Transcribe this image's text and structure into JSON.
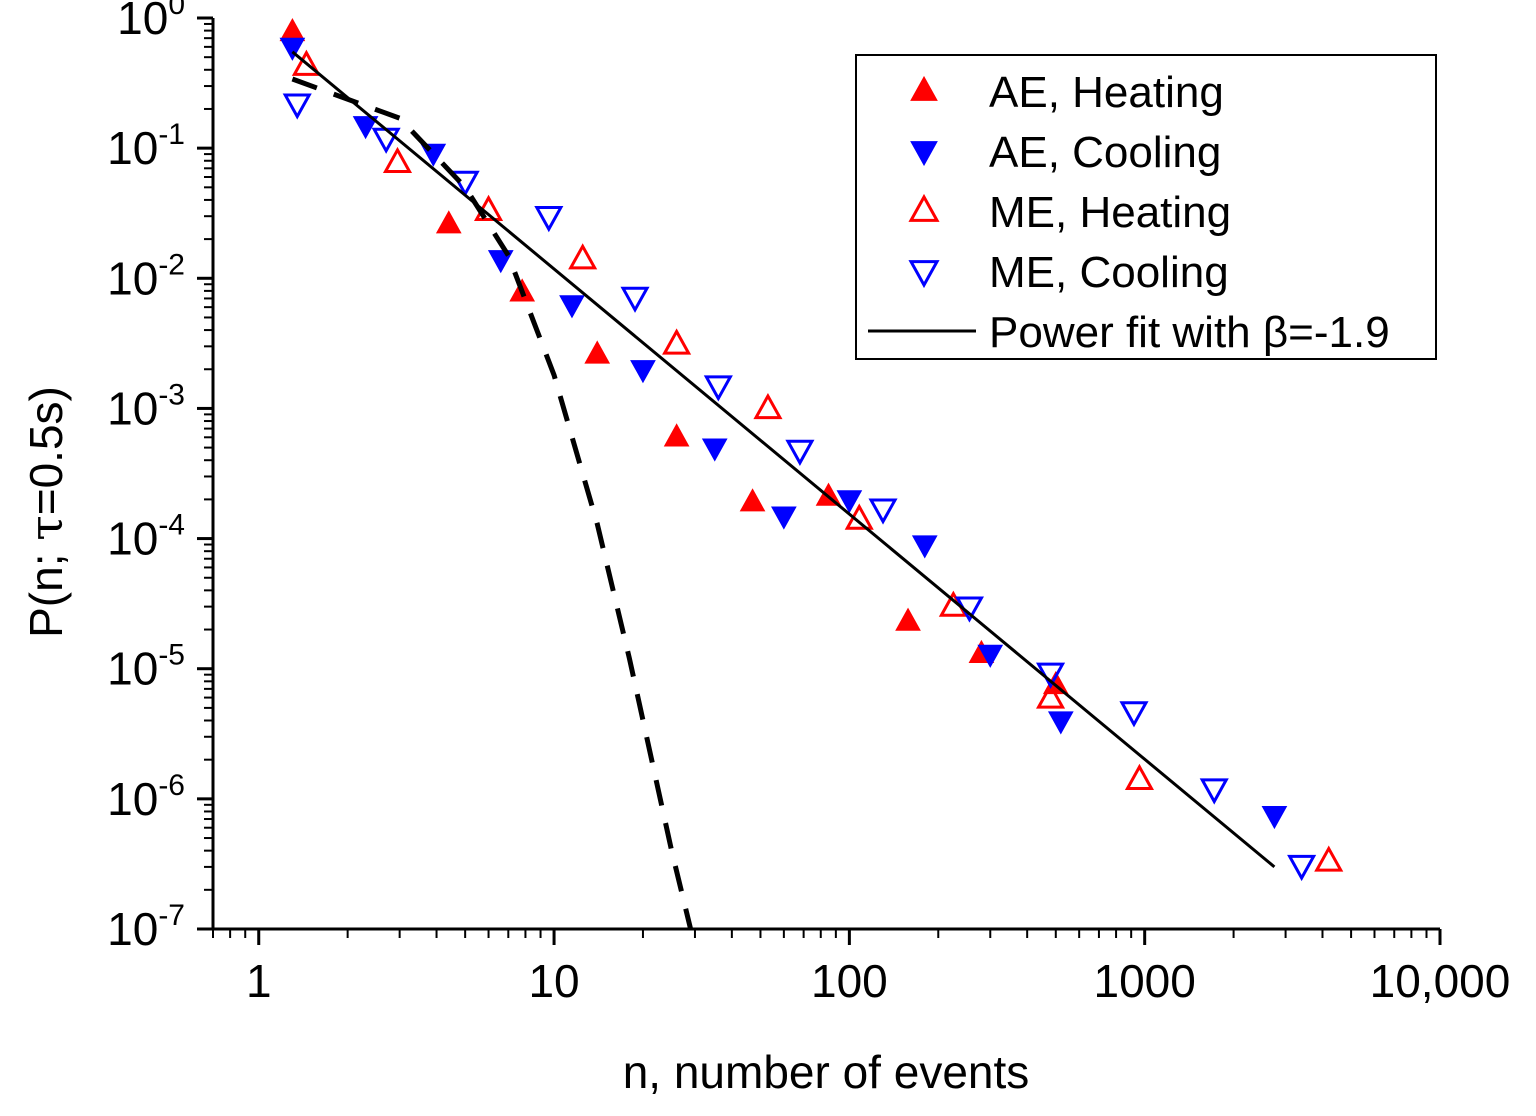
{
  "chart_data": {
    "type": "scatter",
    "title": "",
    "xlabel": "n, number of events",
    "ylabel_parts": [
      "P(n; ",
      "τ",
      "=0.5s)"
    ],
    "xscale": "log",
    "yscale": "log",
    "xlim": [
      0.7,
      10000
    ],
    "ylim": [
      1e-07,
      1
    ],
    "grid": false,
    "legend_position": "top-right",
    "x_ticks": [
      {
        "value": 1,
        "label": "1"
      },
      {
        "value": 10,
        "label": "10"
      },
      {
        "value": 100,
        "label": "100"
      },
      {
        "value": 1000,
        "label": "1000"
      },
      {
        "value": 10000,
        "label": "10,000"
      }
    ],
    "y_ticks": [
      {
        "value": 1,
        "base": "10",
        "exp": "0"
      },
      {
        "value": 0.1,
        "base": "10",
        "exp": "-1"
      },
      {
        "value": 0.01,
        "base": "10",
        "exp": "-2"
      },
      {
        "value": 0.001,
        "base": "10",
        "exp": "-3"
      },
      {
        "value": 0.0001,
        "base": "10",
        "exp": "-4"
      },
      {
        "value": 1e-05,
        "base": "10",
        "exp": "-5"
      },
      {
        "value": 1e-06,
        "base": "10",
        "exp": "-6"
      },
      {
        "value": 1e-07,
        "base": "10",
        "exp": "-7"
      }
    ],
    "series": [
      {
        "name": "AE, Heating",
        "marker": "triangle-up",
        "filled": true,
        "color": "#ff0000",
        "points": [
          [
            1.3,
            0.78
          ],
          [
            4.4,
            0.026
          ],
          [
            7.8,
            0.0078
          ],
          [
            14,
            0.0026
          ],
          [
            26,
            0.0006
          ],
          [
            47,
            0.00019
          ],
          [
            85,
            0.00021
          ],
          [
            158,
            2.3e-05
          ],
          [
            280,
            1.3e-05
          ],
          [
            500,
            7.5e-06
          ]
        ]
      },
      {
        "name": "AE, Cooling",
        "marker": "triangle-down",
        "filled": true,
        "color": "#0000ff",
        "points": [
          [
            1.3,
            0.6
          ],
          [
            2.3,
            0.15
          ],
          [
            3.9,
            0.092
          ],
          [
            6.6,
            0.014
          ],
          [
            11.5,
            0.0063
          ],
          [
            20,
            0.002
          ],
          [
            35,
            0.0005
          ],
          [
            60,
            0.00015
          ],
          [
            100,
            0.0002
          ],
          [
            180,
            9e-05
          ],
          [
            300,
            1.3e-05
          ],
          [
            520,
            4e-06
          ],
          [
            2750,
            7.5e-07
          ]
        ]
      },
      {
        "name": "ME, Heating",
        "marker": "triangle-up",
        "filled": false,
        "color": "#ff0000",
        "points": [
          [
            1.45,
            0.43
          ],
          [
            2.95,
            0.077
          ],
          [
            6,
            0.033
          ],
          [
            12.5,
            0.014
          ],
          [
            26,
            0.0031
          ],
          [
            53,
            0.00099
          ],
          [
            108,
            0.00014
          ],
          [
            225,
            3e-05
          ],
          [
            480,
            5.9e-06
          ],
          [
            960,
            1.4e-06
          ],
          [
            4200,
            3.3e-07
          ]
        ]
      },
      {
        "name": "ME, Cooling",
        "marker": "triangle-down",
        "filled": false,
        "color": "#0000ff",
        "points": [
          [
            1.35,
            0.22
          ],
          [
            2.7,
            0.12
          ],
          [
            5,
            0.056
          ],
          [
            9.6,
            0.03
          ],
          [
            18.8,
            0.0072
          ],
          [
            36,
            0.0015
          ],
          [
            68,
            0.00048
          ],
          [
            130,
            0.00017
          ],
          [
            255,
            3e-05
          ],
          [
            480,
            9.3e-06
          ],
          [
            920,
            4.7e-06
          ],
          [
            1720,
            1.2e-06
          ],
          [
            3400,
            3.1e-07
          ]
        ]
      },
      {
        "name": "Power fit with β=-1.9",
        "type": "line",
        "style": "solid",
        "color": "#000000",
        "points": [
          [
            1.3,
            0.55
          ],
          [
            2750,
            3e-07
          ]
        ]
      },
      {
        "name": "",
        "type": "line",
        "style": "dashed",
        "color": "#000000",
        "points": [
          [
            1.3,
            0.34
          ],
          [
            3,
            0.17
          ],
          [
            5,
            0.05
          ],
          [
            7,
            0.015
          ],
          [
            10,
            0.0018
          ],
          [
            14,
            0.00013
          ],
          [
            18,
            1.2e-05
          ],
          [
            22,
            1.5e-06
          ],
          [
            25,
            4e-07
          ],
          [
            29,
            1e-07
          ]
        ]
      }
    ],
    "legend": [
      {
        "label": "AE, Heating",
        "marker": "triangle-up",
        "filled": true,
        "color": "#ff0000"
      },
      {
        "label": "AE, Cooling",
        "marker": "triangle-down",
        "filled": true,
        "color": "#0000ff"
      },
      {
        "label": "ME, Heating",
        "marker": "triangle-up",
        "filled": false,
        "color": "#ff0000"
      },
      {
        "label": "ME, Cooling",
        "marker": "triangle-down",
        "filled": false,
        "color": "#0000ff"
      },
      {
        "label": "Power fit with β=-1.9",
        "marker": "line",
        "color": "#000000"
      }
    ]
  }
}
